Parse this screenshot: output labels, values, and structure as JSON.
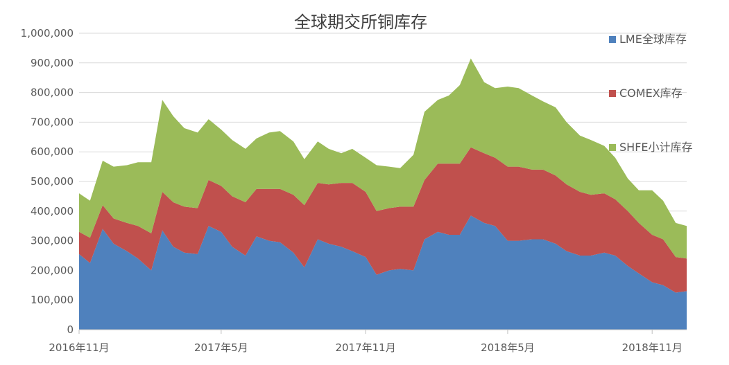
{
  "chart_data": {
    "type": "area",
    "stacked": true,
    "title": "全球期交所铜库存",
    "xlabel": "",
    "ylabel": "",
    "ylim": [
      0,
      1000000
    ],
    "yticks": [
      0,
      100000,
      200000,
      300000,
      400000,
      500000,
      600000,
      700000,
      800000,
      900000,
      1000000
    ],
    "ytick_labels": [
      "0",
      "100,000",
      "200,000",
      "300,000",
      "400,000",
      "500,000",
      "600,000",
      "700,000",
      "800,000",
      "900,000",
      "1,000,000"
    ],
    "xlim": [
      "2016-11-01",
      "2018-12-15"
    ],
    "xticks": [
      {
        "date": "2016-11-01",
        "label": "2016年11月"
      },
      {
        "date": "2017-05-01",
        "label": "2017年5月"
      },
      {
        "date": "2017-11-01",
        "label": "2017年11月"
      },
      {
        "date": "2018-05-01",
        "label": "2018年5月"
      },
      {
        "date": "2018-11-01",
        "label": "2018年11月"
      }
    ],
    "grid": true,
    "legend_position": "right",
    "x": [
      "2016-11-01",
      "2016-11-15",
      "2016-12-01",
      "2016-12-15",
      "2017-01-01",
      "2017-01-15",
      "2017-02-01",
      "2017-02-15",
      "2017-03-01",
      "2017-03-15",
      "2017-04-01",
      "2017-04-15",
      "2017-05-01",
      "2017-05-15",
      "2017-06-01",
      "2017-06-15",
      "2017-07-01",
      "2017-07-15",
      "2017-08-01",
      "2017-08-15",
      "2017-09-01",
      "2017-09-15",
      "2017-10-01",
      "2017-10-15",
      "2017-11-01",
      "2017-11-15",
      "2017-12-01",
      "2017-12-15",
      "2018-01-01",
      "2018-01-15",
      "2018-02-01",
      "2018-02-15",
      "2018-03-01",
      "2018-03-15",
      "2018-04-01",
      "2018-04-15",
      "2018-05-01",
      "2018-05-15",
      "2018-06-01",
      "2018-06-15",
      "2018-07-01",
      "2018-07-15",
      "2018-08-01",
      "2018-08-15",
      "2018-09-01",
      "2018-09-15",
      "2018-10-01",
      "2018-10-15",
      "2018-11-01",
      "2018-11-15",
      "2018-12-01",
      "2018-12-15"
    ],
    "series": [
      {
        "name": "LME全球库存",
        "color": "#4F81BD",
        "values": [
          255000,
          225000,
          340000,
          290000,
          265000,
          240000,
          200000,
          335000,
          280000,
          260000,
          255000,
          350000,
          330000,
          280000,
          250000,
          315000,
          300000,
          295000,
          260000,
          210000,
          305000,
          290000,
          280000,
          265000,
          245000,
          185000,
          200000,
          205000,
          200000,
          305000,
          330000,
          320000,
          320000,
          385000,
          360000,
          350000,
          300000,
          300000,
          305000,
          305000,
          290000,
          265000,
          250000,
          250000,
          260000,
          250000,
          215000,
          190000,
          160000,
          150000,
          125000,
          130000
        ]
      },
      {
        "name": "COMEX库存",
        "color": "#C0504D",
        "values": [
          75000,
          85000,
          80000,
          85000,
          95000,
          110000,
          125000,
          130000,
          150000,
          155000,
          155000,
          155000,
          155000,
          170000,
          180000,
          160000,
          175000,
          180000,
          195000,
          210000,
          190000,
          200000,
          215000,
          230000,
          220000,
          215000,
          210000,
          210000,
          215000,
          200000,
          230000,
          240000,
          240000,
          230000,
          235000,
          230000,
          250000,
          250000,
          235000,
          235000,
          230000,
          225000,
          215000,
          205000,
          200000,
          190000,
          185000,
          170000,
          160000,
          155000,
          120000,
          110000
        ]
      },
      {
        "name": "SHFE小计库存",
        "color": "#9BBB59",
        "values": [
          130000,
          125000,
          150000,
          175000,
          195000,
          215000,
          240000,
          310000,
          290000,
          265000,
          255000,
          205000,
          190000,
          190000,
          180000,
          170000,
          190000,
          195000,
          180000,
          155000,
          140000,
          120000,
          100000,
          115000,
          115000,
          155000,
          140000,
          130000,
          175000,
          230000,
          215000,
          230000,
          265000,
          300000,
          240000,
          235000,
          270000,
          265000,
          250000,
          230000,
          230000,
          210000,
          190000,
          185000,
          160000,
          140000,
          110000,
          110000,
          150000,
          130000,
          115000,
          110000
        ]
      }
    ]
  }
}
